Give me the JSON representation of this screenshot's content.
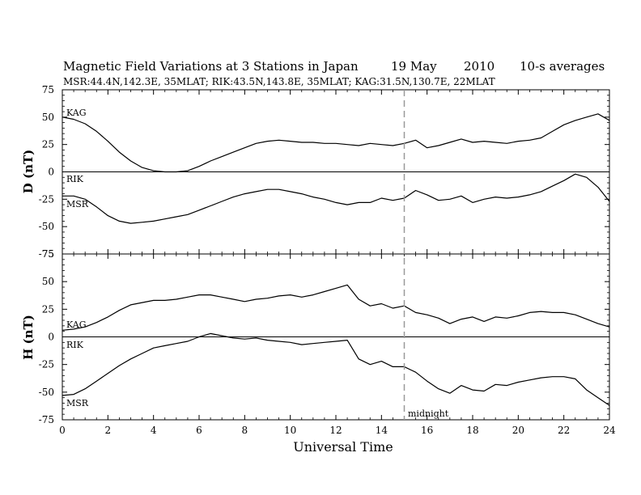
{
  "title_parts": [
    "Magnetic Field Variations at 3 Stations in Japan",
    "19  May",
    "2010",
    "10-s averages"
  ],
  "subtitle": "MSR:44.4N,142.3E, 35MLAT;  RIK:43.5N,143.8E, 35MLAT;  KAG:31.5N,130.7E, 22MLAT",
  "chart_data": [
    {
      "type": "line",
      "panel": "D",
      "ylabel": "D (nT)",
      "xlabel": "Universal Time",
      "xlim": [
        0,
        24
      ],
      "ylim": [
        -75,
        75
      ],
      "xticks": [
        0,
        2,
        4,
        6,
        8,
        10,
        12,
        14,
        16,
        18,
        20,
        22,
        24
      ],
      "yticks": [
        -75,
        -50,
        -25,
        0,
        25,
        50,
        75
      ],
      "grid": false,
      "series": [
        {
          "name": "KAG",
          "x": [
            0,
            0.5,
            1,
            1.5,
            2,
            2.5,
            3,
            3.5,
            4,
            4.5,
            5,
            5.5,
            6,
            6.5,
            7,
            7.5,
            8,
            8.5,
            9,
            9.5,
            10,
            10.5,
            11,
            11.5,
            12,
            12.5,
            13,
            13.5,
            14,
            14.5,
            15,
            15.5,
            16,
            16.5,
            17,
            17.5,
            18,
            18.5,
            19,
            19.5,
            20,
            20.5,
            21,
            21.5,
            22,
            22.5,
            23,
            23.5,
            24
          ],
          "values": [
            50,
            48,
            44,
            37,
            28,
            18,
            10,
            4,
            1,
            0,
            0,
            1,
            5,
            10,
            14,
            18,
            22,
            26,
            28,
            29,
            28,
            27,
            27,
            26,
            26,
            25,
            24,
            26,
            25,
            24,
            26,
            29,
            22,
            24,
            27,
            30,
            27,
            28,
            27,
            26,
            28,
            29,
            31,
            37,
            43,
            47,
            50,
            53,
            47
          ]
        },
        {
          "name": "RIK / MSR",
          "x": [
            0,
            0.5,
            1,
            1.5,
            2,
            2.5,
            3,
            3.5,
            4,
            4.5,
            5,
            5.5,
            6,
            6.5,
            7,
            7.5,
            8,
            8.5,
            9,
            9.5,
            10,
            10.5,
            11,
            11.5,
            12,
            12.5,
            13,
            13.5,
            14,
            14.5,
            15,
            15.5,
            16,
            16.5,
            17,
            17.5,
            18,
            18.5,
            19,
            19.5,
            20,
            20.5,
            21,
            21.5,
            22,
            22.5,
            23,
            23.5,
            24
          ],
          "values": [
            -22,
            -22,
            -25,
            -32,
            -40,
            -45,
            -47,
            -46,
            -45,
            -43,
            -41,
            -39,
            -35,
            -31,
            -27,
            -23,
            -20,
            -18,
            -16,
            -16,
            -18,
            -20,
            -23,
            -25,
            -28,
            -30,
            -28,
            -28,
            -24,
            -26,
            -24,
            -17,
            -21,
            -26,
            -25,
            -22,
            -28,
            -25,
            -23,
            -24,
            -23,
            -21,
            -18,
            -13,
            -8,
            -2,
            -5,
            -14,
            -27
          ]
        }
      ],
      "annotations": [
        "KAG",
        "RIK",
        "MSR"
      ]
    },
    {
      "type": "line",
      "panel": "H",
      "ylabel": "H (nT)",
      "xlabel": "Universal Time",
      "xlim": [
        0,
        24
      ],
      "ylim": [
        -75,
        75
      ],
      "xticks": [
        0,
        2,
        4,
        6,
        8,
        10,
        12,
        14,
        16,
        18,
        20,
        22,
        24
      ],
      "yticks": [
        -75,
        -50,
        -25,
        0,
        25,
        50,
        75
      ],
      "grid": false,
      "series": [
        {
          "name": "KAG",
          "x": [
            0,
            0.5,
            1,
            1.5,
            2,
            2.5,
            3,
            3.5,
            4,
            4.5,
            5,
            5.5,
            6,
            6.5,
            7,
            7.5,
            8,
            8.5,
            9,
            9.5,
            10,
            10.5,
            11,
            11.5,
            12,
            12.5,
            13,
            13.5,
            14,
            14.5,
            15,
            15.5,
            16,
            16.5,
            17,
            17.5,
            18,
            18.5,
            19,
            19.5,
            20,
            20.5,
            21,
            21.5,
            22,
            22.5,
            23,
            23.5,
            24
          ],
          "values": [
            6,
            7,
            9,
            13,
            18,
            24,
            29,
            31,
            33,
            33,
            34,
            36,
            38,
            38,
            36,
            34,
            32,
            34,
            35,
            37,
            38,
            36,
            38,
            41,
            44,
            47,
            34,
            28,
            30,
            26,
            28,
            22,
            20,
            17,
            12,
            16,
            18,
            14,
            18,
            17,
            19,
            22,
            23,
            22,
            22,
            20,
            16,
            12,
            9
          ]
        },
        {
          "name": "RIK / MSR",
          "x": [
            0,
            0.5,
            1,
            1.5,
            2,
            2.5,
            3,
            3.5,
            4,
            4.5,
            5,
            5.5,
            6,
            6.5,
            7,
            7.5,
            8,
            8.5,
            9,
            9.5,
            10,
            10.5,
            11,
            11.5,
            12,
            12.5,
            13,
            13.5,
            14,
            14.5,
            15,
            15.5,
            16,
            16.5,
            17,
            17.5,
            18,
            18.5,
            19,
            19.5,
            20,
            20.5,
            21,
            21.5,
            22,
            22.5,
            23,
            23.5,
            24
          ],
          "values": [
            -53,
            -52,
            -47,
            -40,
            -33,
            -26,
            -20,
            -15,
            -10,
            -8,
            -6,
            -4,
            0,
            3,
            1,
            -1,
            -2,
            -1,
            -3,
            -4,
            -5,
            -7,
            -6,
            -5,
            -4,
            -3,
            -20,
            -25,
            -22,
            -27,
            -27,
            -32,
            -40,
            -47,
            -51,
            -44,
            -48,
            -49,
            -43,
            -44,
            -41,
            -39,
            -37,
            -36,
            -36,
            -38,
            -48,
            -55,
            -62
          ]
        }
      ],
      "annotations": [
        "KAG",
        "RIK",
        "MSR",
        "midnight"
      ]
    }
  ]
}
